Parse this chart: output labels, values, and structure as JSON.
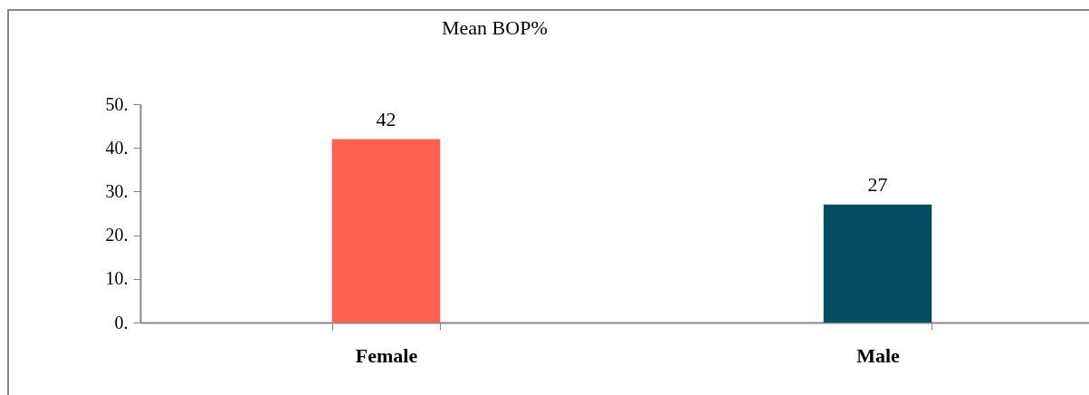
{
  "chart_data": {
    "type": "bar",
    "title": "Mean BOP%",
    "categories": [
      "Female",
      "Male"
    ],
    "values": [
      42,
      27
    ],
    "colors": [
      "#ff6150",
      "#034d63"
    ],
    "ylim": [
      0,
      50
    ],
    "yticks": [
      {
        "value": 0,
        "label": "0."
      },
      {
        "value": 10,
        "label": "10."
      },
      {
        "value": 20,
        "label": "20."
      },
      {
        "value": 30,
        "label": "30."
      },
      {
        "value": 40,
        "label": "40."
      },
      {
        "value": 50,
        "label": "50."
      }
    ],
    "data_labels": true
  }
}
